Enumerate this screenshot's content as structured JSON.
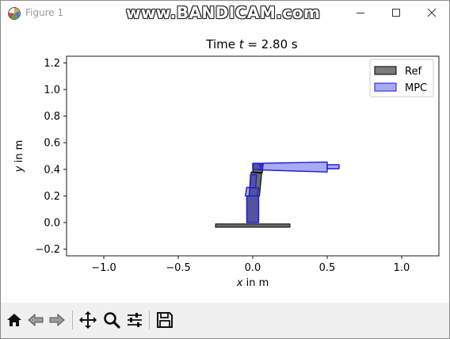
{
  "window": {
    "title": "Figure 1",
    "watermark": "www.BANDICAM.com"
  },
  "toolbar": {
    "buttons": [
      {
        "name": "home",
        "icon": "home-icon"
      },
      {
        "name": "back",
        "icon": "back-arrow-icon"
      },
      {
        "name": "forward",
        "icon": "forward-arrow-icon"
      },
      {
        "name": "pan",
        "icon": "move-icon"
      },
      {
        "name": "zoom",
        "icon": "zoom-icon"
      },
      {
        "name": "configure-subplots",
        "icon": "sliders-icon"
      },
      {
        "name": "save",
        "icon": "save-icon"
      }
    ]
  },
  "chart_data": {
    "type": "diagram",
    "title_prefix": "Time ",
    "title_var": "t",
    "title_suffix": " = 2.80 s",
    "xlabel_var": "x",
    "xlabel_suffix": " in m",
    "ylabel_var": "y",
    "ylabel_suffix": " in m",
    "xlim": [
      -1.25,
      1.25
    ],
    "ylim": [
      -0.25,
      1.25
    ],
    "x_ticks": [
      -1.0,
      -0.5,
      0.0,
      0.5,
      1.0
    ],
    "x_tick_labels": [
      "−1.0",
      "−0.5",
      "0.0",
      "0.5",
      "1.0"
    ],
    "y_ticks": [
      -0.2,
      0.0,
      0.2,
      0.4,
      0.6,
      0.8,
      1.0,
      1.2
    ],
    "y_tick_labels": [
      "−0.2",
      "0.0",
      "0.2",
      "0.4",
      "0.6",
      "0.8",
      "1.0",
      "1.2"
    ],
    "legend": {
      "placement": "top-right",
      "entries": [
        {
          "label": "Ref",
          "fill": "#7a7a7a",
          "edge": "#000000"
        },
        {
          "label": "MPC",
          "fill": "#a9a9f2",
          "edge": "#1c1cd6"
        }
      ]
    },
    "colors": {
      "ref_fill": "#6b6b6b",
      "ref_edge": "#000000",
      "mpc_fill": "rgba(50,50,230,0.42)",
      "mpc_edge": "#1c1cd6"
    },
    "ground": [
      [
        -0.25,
        -0.01
      ],
      [
        0.25,
        -0.01
      ],
      [
        0.25,
        -0.035
      ],
      [
        -0.25,
        -0.035
      ]
    ],
    "ref_links": [
      [
        [
          -0.04,
          0.0
        ],
        [
          0.04,
          0.0
        ],
        [
          0.04,
          0.2
        ],
        [
          -0.04,
          0.2
        ]
      ],
      [
        [
          -0.025,
          0.2
        ],
        [
          0.045,
          0.2
        ],
        [
          0.06,
          0.37
        ],
        [
          -0.01,
          0.38
        ]
      ],
      [
        [
          0.0,
          0.38
        ],
        [
          0.065,
          0.375
        ],
        [
          0.07,
          0.44
        ],
        [
          0.005,
          0.445
        ]
      ]
    ],
    "mpc_links": [
      [
        [
          -0.04,
          0.0
        ],
        [
          0.04,
          0.0
        ],
        [
          0.04,
          0.2
        ],
        [
          -0.04,
          0.2
        ]
      ],
      [
        [
          -0.05,
          0.2
        ],
        [
          0.03,
          0.2
        ],
        [
          0.04,
          0.26
        ],
        [
          -0.04,
          0.265
        ]
      ],
      [
        [
          -0.02,
          0.26
        ],
        [
          0.02,
          0.26
        ],
        [
          0.025,
          0.36
        ],
        [
          -0.015,
          0.36
        ]
      ],
      [
        [
          0.0,
          0.4
        ],
        [
          0.065,
          0.395
        ],
        [
          0.065,
          0.445
        ],
        [
          0.0,
          0.445
        ]
      ],
      [
        [
          0.05,
          0.395
        ],
        [
          0.5,
          0.38
        ],
        [
          0.5,
          0.455
        ],
        [
          0.05,
          0.445
        ]
      ],
      [
        [
          0.5,
          0.405
        ],
        [
          0.58,
          0.405
        ],
        [
          0.58,
          0.435
        ],
        [
          0.5,
          0.435
        ]
      ]
    ]
  }
}
